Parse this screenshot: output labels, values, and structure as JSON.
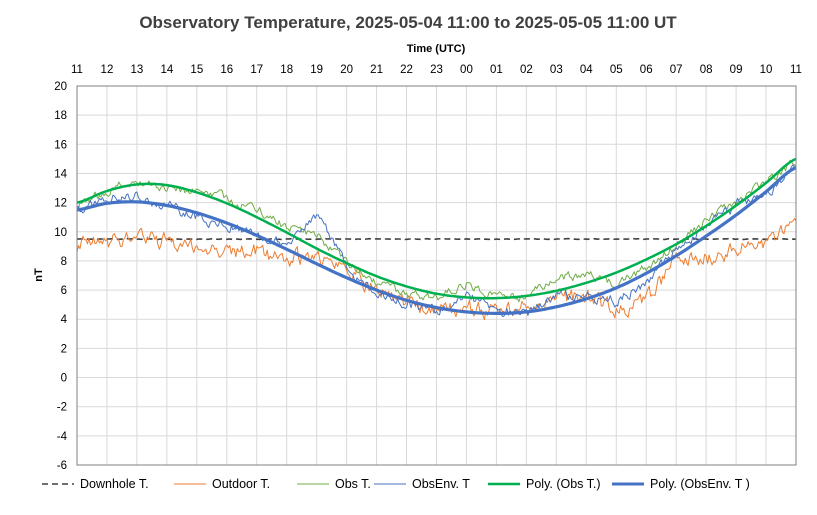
{
  "chart_data": {
    "type": "line",
    "title": "Observatory Temperature,  2025-05-04 11:00 to 2025-05-05 11:00 UT",
    "xlabel": "Time (UTC)",
    "ylabel": "nT",
    "x_tick_labels": [
      "11",
      "12",
      "13",
      "14",
      "15",
      "16",
      "17",
      "18",
      "19",
      "20",
      "21",
      "22",
      "23",
      "00",
      "01",
      "02",
      "03",
      "04",
      "05",
      "06",
      "07",
      "08",
      "09",
      "10",
      "11"
    ],
    "x_hours_since_start": [
      0,
      1,
      2,
      3,
      4,
      5,
      6,
      7,
      8,
      9,
      10,
      11,
      12,
      13,
      14,
      15,
      16,
      17,
      18,
      19,
      20,
      21,
      22,
      23,
      24
    ],
    "xlim": [
      0,
      24
    ],
    "ylim": [
      -6,
      20
    ],
    "y_ticks": [
      -6,
      -4,
      -2,
      0,
      2,
      4,
      6,
      8,
      10,
      12,
      14,
      16,
      18,
      20
    ],
    "grid": true,
    "legend_position": "bottom",
    "series": [
      {
        "name": "Downhole T.",
        "color": "#404040",
        "style": "dashed",
        "width": 1.6,
        "noise": 0.02,
        "values": [
          9.5,
          9.5,
          9.5,
          9.5,
          9.5,
          9.5,
          9.5,
          9.5,
          9.5,
          9.5,
          9.5,
          9.5,
          9.5,
          9.5,
          9.5,
          9.5,
          9.5,
          9.5,
          9.5,
          9.5,
          9.5,
          9.5,
          9.5,
          9.5,
          9.5
        ]
      },
      {
        "name": "Outdoor T.",
        "color": "#ed7d31",
        "style": "solid",
        "width": 1,
        "noise": 0.55,
        "values": [
          9.0,
          9.2,
          9.8,
          9.3,
          9.0,
          8.6,
          8.6,
          8.2,
          8.2,
          7.5,
          6.0,
          5.2,
          4.5,
          4.8,
          4.5,
          4.8,
          5.5,
          5.5,
          4.6,
          5.2,
          8.0,
          8.2,
          8.8,
          9.2,
          10.2
        ]
      },
      {
        "name": "Obs T.",
        "color": "#70ad47",
        "style": "solid",
        "width": 1,
        "noise": 0.3,
        "values": [
          11.7,
          12.8,
          13.5,
          13.0,
          12.8,
          12.3,
          11.5,
          10.3,
          9.8,
          7.8,
          6.5,
          5.7,
          5.5,
          6.5,
          5.6,
          5.5,
          6.8,
          7.0,
          6.4,
          7.5,
          9.0,
          10.8,
          12.0,
          13.5,
          14.8
        ]
      },
      {
        "name": "ObsEnv. T",
        "color": "#4472c4",
        "style": "solid",
        "width": 1,
        "noise": 0.35,
        "values": [
          11.5,
          12.3,
          12.5,
          11.8,
          11.0,
          10.5,
          9.8,
          9.2,
          11.3,
          7.5,
          5.8,
          5.0,
          4.6,
          5.8,
          4.5,
          4.3,
          5.5,
          5.8,
          5.2,
          6.5,
          8.8,
          10.2,
          11.8,
          12.5,
          14.8
        ]
      },
      {
        "name": "Poly. (Obs T.)",
        "color": "#00b050",
        "style": "solid",
        "width": 2.5,
        "noise": 0,
        "values": [
          12.0,
          12.8,
          13.25,
          13.2,
          12.7,
          11.95,
          11.0,
          9.95,
          8.85,
          7.85,
          6.95,
          6.25,
          5.75,
          5.5,
          5.45,
          5.6,
          5.95,
          6.5,
          7.2,
          8.1,
          9.15,
          10.4,
          11.8,
          13.35,
          15.0
        ]
      },
      {
        "name": "Poly. (ObsEnv. T )",
        "color": "#4472c4",
        "style": "solid",
        "width": 3.2,
        "noise": 0,
        "values": [
          11.5,
          11.95,
          12.05,
          11.8,
          11.3,
          10.6,
          9.75,
          8.8,
          7.8,
          6.85,
          6.0,
          5.3,
          4.8,
          4.5,
          4.4,
          4.5,
          4.85,
          5.4,
          6.15,
          7.15,
          8.35,
          9.7,
          11.15,
          12.75,
          14.4
        ]
      }
    ]
  }
}
